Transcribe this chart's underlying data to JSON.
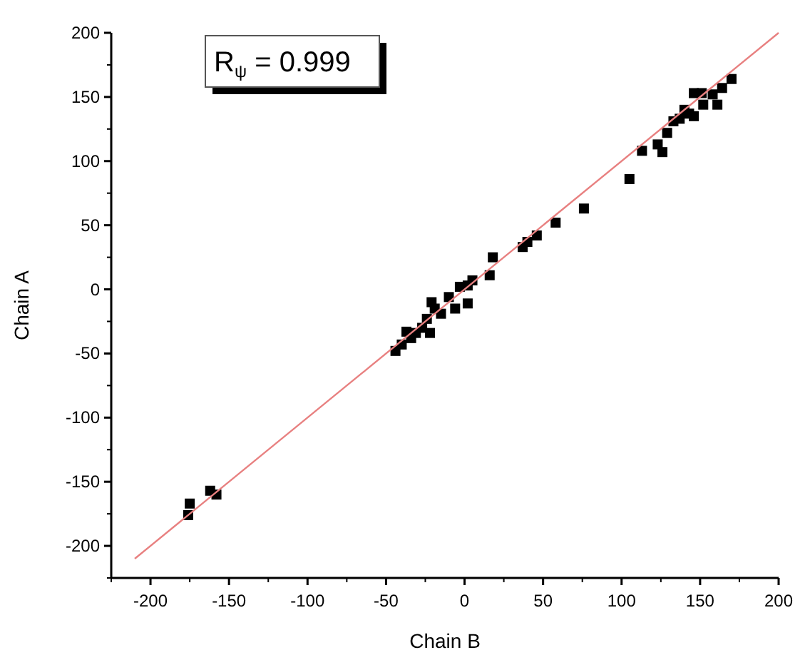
{
  "chart_data": {
    "type": "scatter",
    "xlabel": "Chain B",
    "ylabel": "Chain A",
    "annotations": [
      "R$_{ψ}$ = 0.999"
    ],
    "xlim": [
      -225,
      200
    ],
    "ylim": [
      -225,
      200
    ],
    "xticks": [
      -200,
      -150,
      -100,
      -50,
      0,
      50,
      100,
      150,
      200
    ],
    "yticks": [
      -200,
      -150,
      -100,
      -50,
      0,
      50,
      100,
      150,
      200
    ],
    "series": [
      {
        "type": "scatter",
        "color": "#000000",
        "marker": "square",
        "x": [
          -176,
          -175,
          -162,
          -158,
          -44,
          -40,
          -37,
          -34,
          -31,
          -27,
          -22,
          -21,
          -19,
          -24,
          -15,
          -10,
          -6,
          -3,
          2,
          5,
          2,
          16,
          18,
          37,
          40,
          46,
          58,
          76,
          105,
          113,
          123,
          126,
          129,
          133,
          137,
          140,
          146,
          146,
          152,
          158,
          161,
          164,
          170,
          151,
          143
        ],
        "values": [
          -176,
          -167,
          -157,
          -160,
          -48,
          -43,
          -33,
          -38,
          -34,
          -30,
          -34,
          -10,
          -15,
          -23,
          -19,
          -6,
          -15,
          2,
          3,
          7,
          -11,
          11,
          25,
          33,
          37,
          42,
          52,
          63,
          86,
          108,
          113,
          107,
          122,
          131,
          133,
          140,
          153,
          135,
          144,
          152,
          144,
          157,
          164,
          153,
          137
        ]
      },
      {
        "type": "line",
        "color": "#e88080",
        "marker": "none",
        "line_style": "solid",
        "x": [
          -210,
          200
        ],
        "values": [
          -210,
          200
        ]
      }
    ]
  }
}
